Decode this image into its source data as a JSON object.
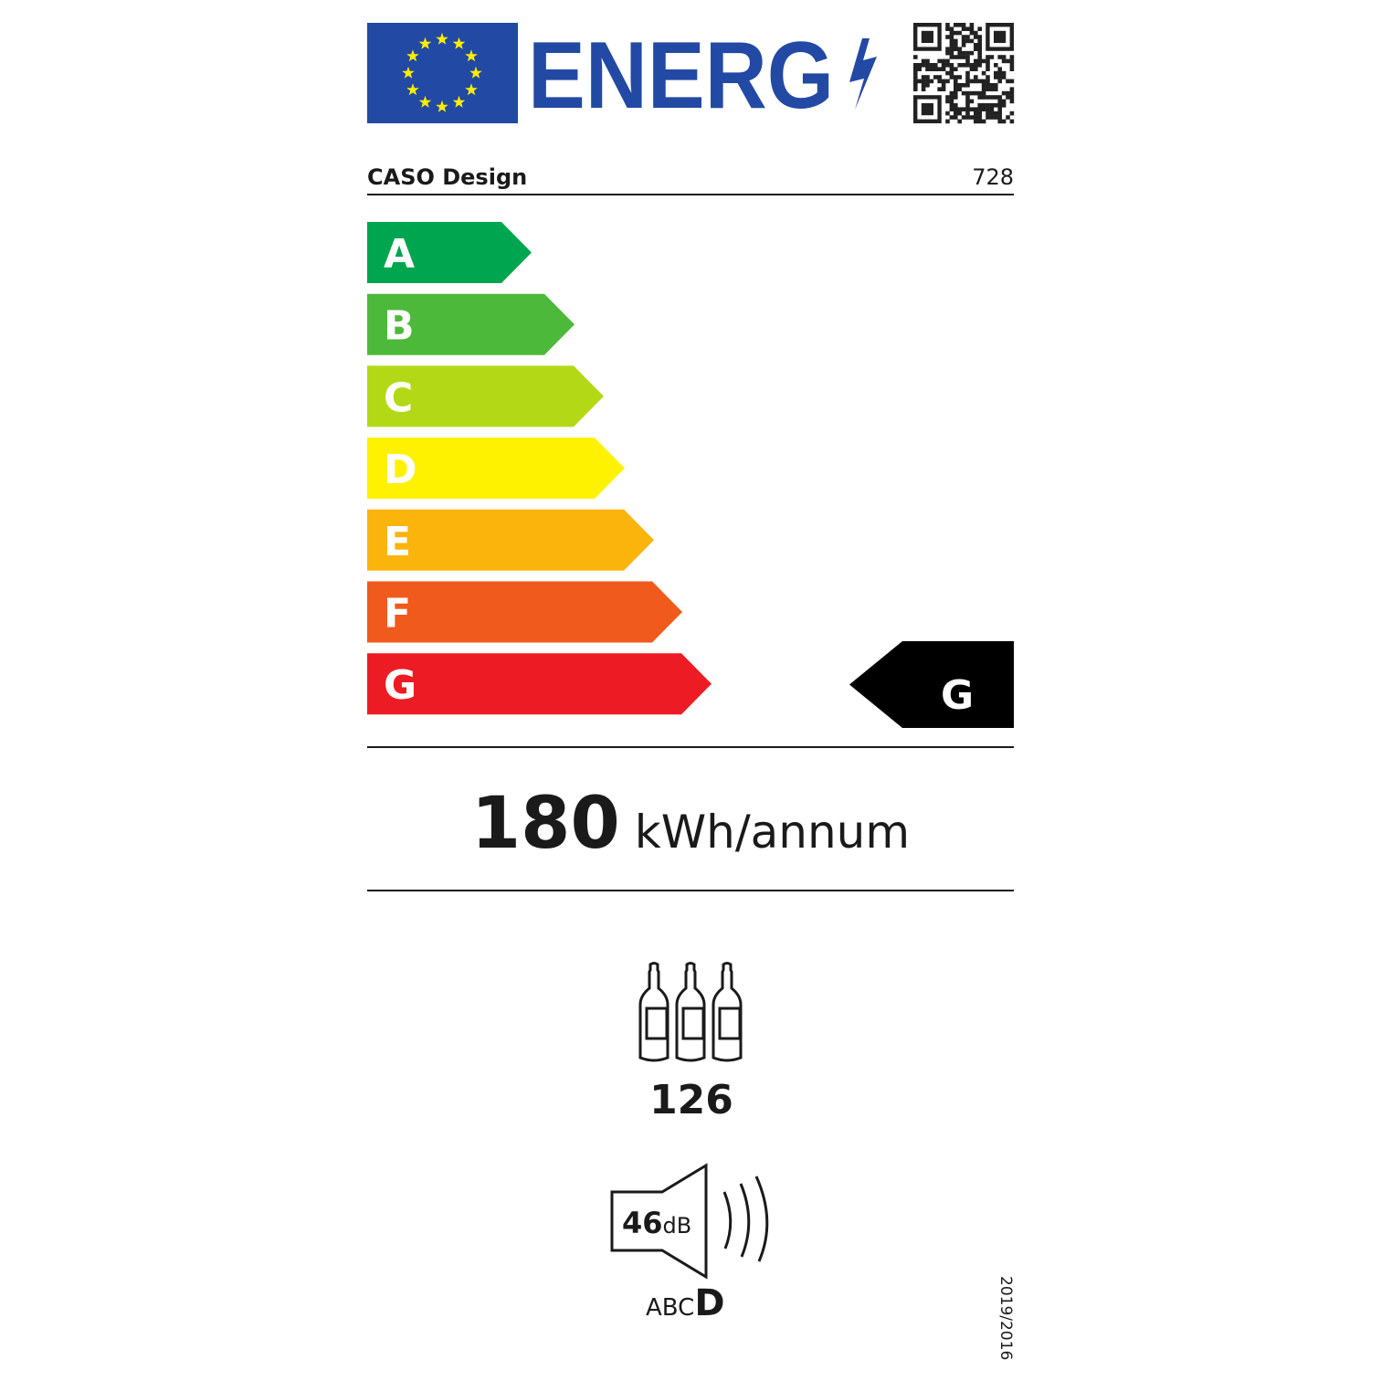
{
  "header": {
    "logo_text": "ENERG",
    "eu_flag_colors": {
      "blue": "#2249a4",
      "stars": "#ffed00"
    },
    "qr_code": "qr-code-icon"
  },
  "supplier": {
    "name": "CASO Design",
    "model": "728"
  },
  "scale": {
    "classes": [
      {
        "letter": "A",
        "color": "#00a54f"
      },
      {
        "letter": "B",
        "color": "#4db93a"
      },
      {
        "letter": "C",
        "color": "#b3d916"
      },
      {
        "letter": "D",
        "color": "#fff200"
      },
      {
        "letter": "E",
        "color": "#fbb40c"
      },
      {
        "letter": "F",
        "color": "#f15a1d"
      },
      {
        "letter": "G",
        "color": "#ed1c24"
      }
    ],
    "rating": "G"
  },
  "consumption": {
    "value": "180",
    "unit": "kWh/annum"
  },
  "bottles": {
    "icon": "wine-bottles-icon",
    "value": "126"
  },
  "noise": {
    "icon": "speaker-icon",
    "value": "46",
    "unit": "dB",
    "classes": "ABC",
    "class": "D"
  },
  "regulation": "2019/2016"
}
